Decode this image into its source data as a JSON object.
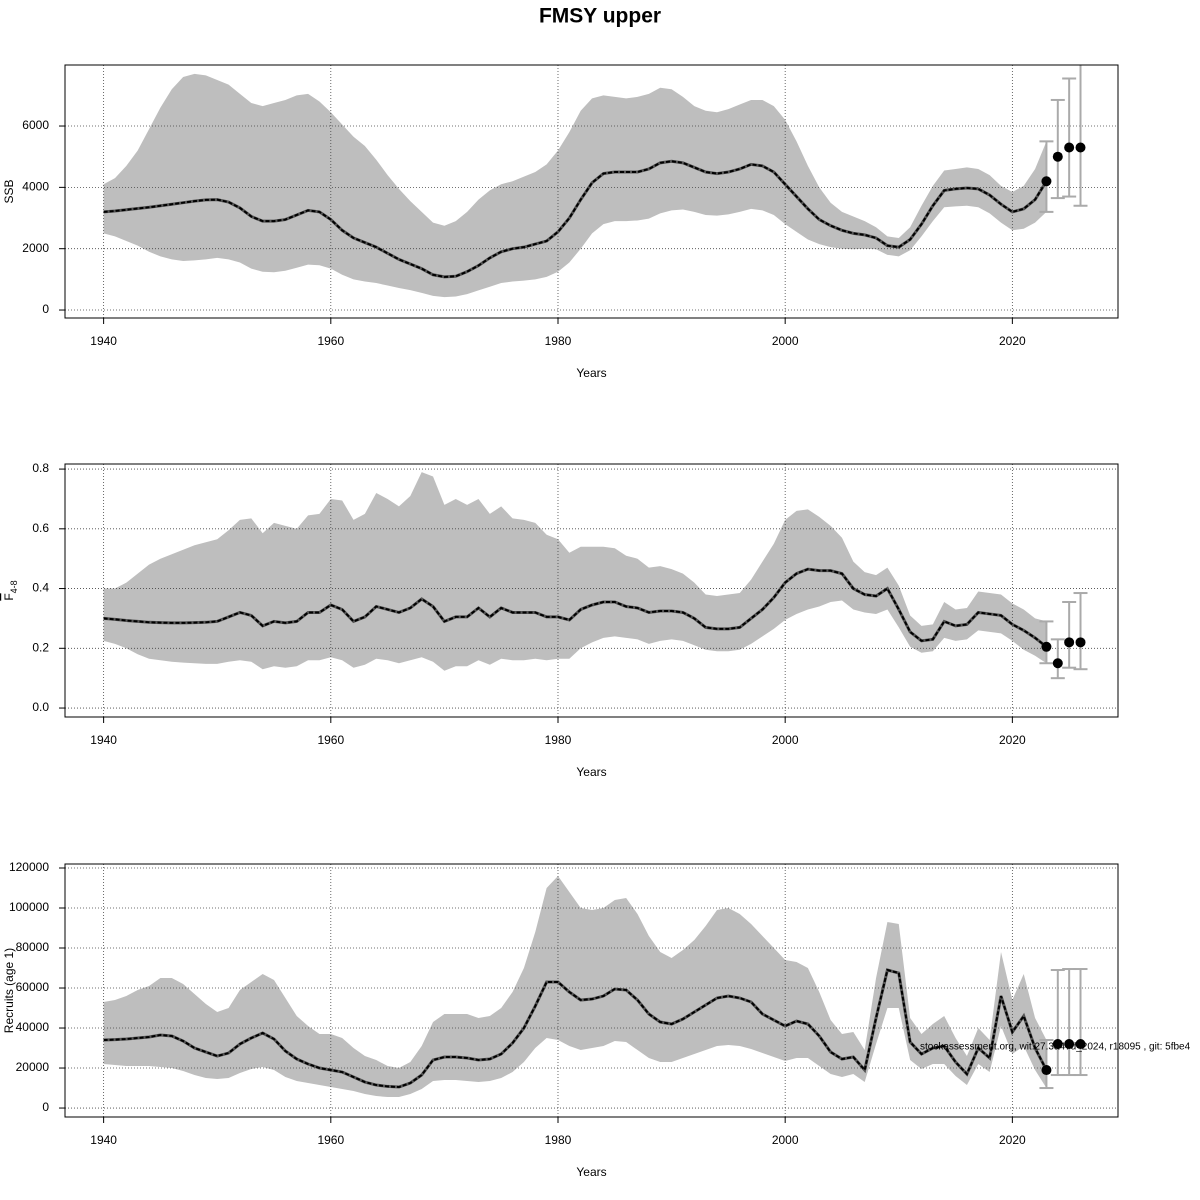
{
  "title": "FMSY upper",
  "footnote": "stockassessment.org, wit.27.3a47d_2024, r18095 , git: 5fbe4",
  "chart_data": [
    {
      "type": "line_band",
      "xlabel": "Years",
      "ylabel": "SSB",
      "xlim": [
        1936.6,
        2029.3
      ],
      "xticks": [
        1940,
        1960,
        1980,
        2000,
        2020
      ],
      "ylim": [
        -260,
        7990
      ],
      "yticks": [
        0,
        2000,
        4000,
        6000
      ],
      "grid": true,
      "band_color": "#bebebe",
      "line_color": "#000000",
      "error_bar_color": "#aaaaaa",
      "x": [
        1940,
        1941,
        1942,
        1943,
        1944,
        1945,
        1946,
        1947,
        1948,
        1949,
        1950,
        1951,
        1952,
        1953,
        1954,
        1955,
        1956,
        1957,
        1958,
        1959,
        1960,
        1961,
        1962,
        1963,
        1964,
        1965,
        1966,
        1967,
        1968,
        1969,
        1970,
        1971,
        1972,
        1973,
        1974,
        1975,
        1976,
        1977,
        1978,
        1979,
        1980,
        1981,
        1982,
        1983,
        1984,
        1985,
        1986,
        1987,
        1988,
        1989,
        1990,
        1991,
        1992,
        1993,
        1994,
        1995,
        1996,
        1997,
        1998,
        1999,
        2000,
        2001,
        2002,
        2003,
        2004,
        2005,
        2006,
        2007,
        2008,
        2009,
        2010,
        2011,
        2012,
        2013,
        2014,
        2015,
        2016,
        2017,
        2018,
        2019,
        2020,
        2021,
        2022,
        2023
      ],
      "values": [
        3200,
        3230,
        3270,
        3310,
        3350,
        3400,
        3450,
        3500,
        3550,
        3590,
        3600,
        3520,
        3330,
        3050,
        2900,
        2900,
        2950,
        3100,
        3250,
        3200,
        2950,
        2600,
        2350,
        2200,
        2050,
        1850,
        1650,
        1500,
        1350,
        1150,
        1080,
        1100,
        1250,
        1450,
        1700,
        1900,
        2000,
        2050,
        2150,
        2250,
        2550,
        3000,
        3600,
        4150,
        4450,
        4500,
        4500,
        4500,
        4600,
        4800,
        4850,
        4800,
        4650,
        4500,
        4450,
        4500,
        4600,
        4750,
        4700,
        4500,
        4100,
        3700,
        3300,
        2950,
        2750,
        2600,
        2500,
        2450,
        2350,
        2100,
        2050,
        2300,
        2800,
        3400,
        3900,
        3950,
        3980,
        3950,
        3750,
        3450,
        3200,
        3300,
        3600,
        4200
      ],
      "high": [
        4100,
        4300,
        4700,
        5200,
        5900,
        6600,
        7200,
        7600,
        7700,
        7650,
        7500,
        7350,
        7050,
        6750,
        6650,
        6750,
        6850,
        7000,
        7050,
        6800,
        6450,
        6050,
        5650,
        5350,
        4900,
        4400,
        3950,
        3550,
        3200,
        2850,
        2750,
        2900,
        3200,
        3600,
        3900,
        4100,
        4200,
        4350,
        4500,
        4750,
        5200,
        5800,
        6500,
        6900,
        7000,
        6950,
        6900,
        6950,
        7050,
        7250,
        7200,
        6950,
        6650,
        6500,
        6450,
        6550,
        6700,
        6850,
        6850,
        6650,
        6200,
        5500,
        4700,
        4000,
        3500,
        3200,
        3050,
        2900,
        2700,
        2400,
        2350,
        2700,
        3400,
        4050,
        4550,
        4600,
        4650,
        4600,
        4400,
        4050,
        3850,
        4050,
        4600,
        5500
      ],
      "low": [
        2500,
        2400,
        2250,
        2100,
        1900,
        1750,
        1650,
        1600,
        1620,
        1650,
        1700,
        1650,
        1550,
        1350,
        1250,
        1230,
        1280,
        1380,
        1480,
        1460,
        1350,
        1150,
        1000,
        930,
        880,
        800,
        720,
        650,
        560,
        460,
        420,
        440,
        520,
        640,
        760,
        880,
        930,
        960,
        1000,
        1080,
        1250,
        1550,
        2000,
        2500,
        2800,
        2900,
        2900,
        2920,
        2980,
        3150,
        3250,
        3280,
        3200,
        3100,
        3080,
        3120,
        3200,
        3300,
        3250,
        3100,
        2800,
        2550,
        2300,
        2150,
        2050,
        2000,
        1980,
        2000,
        1980,
        1800,
        1750,
        1950,
        2400,
        2900,
        3350,
        3380,
        3400,
        3350,
        3150,
        2850,
        2600,
        2650,
        2850,
        3200
      ],
      "projection": {
        "x": [
          2023,
          2024,
          2025,
          2026
        ],
        "values": [
          4200,
          5000,
          5300,
          5300
        ],
        "low": [
          3200,
          3650,
          3700,
          3400
        ],
        "high": [
          5500,
          6850,
          7550,
          8100
        ]
      }
    },
    {
      "type": "line_band",
      "xlabel": "Years",
      "ylabel": "F",
      "ylabel_subscript": "4-8",
      "xlim": [
        1936.6,
        2029.3
      ],
      "xticks": [
        1940,
        1960,
        1980,
        2000,
        2020
      ],
      "ylim": [
        -0.03,
        0.817
      ],
      "yticks": [
        {
          "value": 0,
          "label": "0.0"
        },
        0.2,
        0.4,
        0.6,
        0.8
      ],
      "grid": true,
      "band_color": "#bebebe",
      "line_color": "#000000",
      "error_bar_color": "#aaaaaa",
      "x": [
        1940,
        1941,
        1942,
        1943,
        1944,
        1945,
        1946,
        1947,
        1948,
        1949,
        1950,
        1951,
        1952,
        1953,
        1954,
        1955,
        1956,
        1957,
        1958,
        1959,
        1960,
        1961,
        1962,
        1963,
        1964,
        1965,
        1966,
        1967,
        1968,
        1969,
        1970,
        1971,
        1972,
        1973,
        1974,
        1975,
        1976,
        1977,
        1978,
        1979,
        1980,
        1981,
        1982,
        1983,
        1984,
        1985,
        1986,
        1987,
        1988,
        1989,
        1990,
        1991,
        1992,
        1993,
        1994,
        1995,
        1996,
        1997,
        1998,
        1999,
        2000,
        2001,
        2002,
        2003,
        2004,
        2005,
        2006,
        2007,
        2008,
        2009,
        2010,
        2011,
        2012,
        2013,
        2014,
        2015,
        2016,
        2017,
        2018,
        2019,
        2020,
        2021,
        2022,
        2023
      ],
      "values": [
        0.3,
        0.297,
        0.293,
        0.29,
        0.287,
        0.286,
        0.285,
        0.285,
        0.286,
        0.287,
        0.29,
        0.305,
        0.32,
        0.31,
        0.275,
        0.29,
        0.285,
        0.29,
        0.32,
        0.32,
        0.345,
        0.33,
        0.29,
        0.305,
        0.34,
        0.33,
        0.32,
        0.335,
        0.365,
        0.34,
        0.29,
        0.305,
        0.305,
        0.335,
        0.305,
        0.335,
        0.32,
        0.32,
        0.32,
        0.305,
        0.305,
        0.295,
        0.33,
        0.345,
        0.355,
        0.355,
        0.34,
        0.335,
        0.32,
        0.325,
        0.325,
        0.32,
        0.3,
        0.27,
        0.265,
        0.265,
        0.27,
        0.3,
        0.33,
        0.37,
        0.42,
        0.45,
        0.465,
        0.46,
        0.46,
        0.45,
        0.4,
        0.38,
        0.375,
        0.4,
        0.33,
        0.255,
        0.225,
        0.23,
        0.29,
        0.275,
        0.28,
        0.32,
        0.315,
        0.31,
        0.28,
        0.26,
        0.235,
        0.205
      ],
      "high": [
        0.4,
        0.4,
        0.42,
        0.45,
        0.48,
        0.5,
        0.515,
        0.53,
        0.545,
        0.555,
        0.565,
        0.595,
        0.63,
        0.635,
        0.585,
        0.62,
        0.61,
        0.6,
        0.645,
        0.65,
        0.7,
        0.695,
        0.63,
        0.65,
        0.72,
        0.7,
        0.675,
        0.71,
        0.79,
        0.775,
        0.68,
        0.7,
        0.68,
        0.7,
        0.65,
        0.675,
        0.635,
        0.63,
        0.62,
        0.58,
        0.565,
        0.52,
        0.54,
        0.54,
        0.54,
        0.535,
        0.51,
        0.5,
        0.47,
        0.475,
        0.465,
        0.45,
        0.42,
        0.38,
        0.375,
        0.38,
        0.385,
        0.43,
        0.49,
        0.55,
        0.63,
        0.66,
        0.665,
        0.64,
        0.61,
        0.57,
        0.49,
        0.455,
        0.445,
        0.47,
        0.41,
        0.31,
        0.275,
        0.28,
        0.355,
        0.33,
        0.335,
        0.39,
        0.385,
        0.38,
        0.35,
        0.33,
        0.3,
        0.29
      ],
      "low": [
        0.225,
        0.215,
        0.2,
        0.18,
        0.165,
        0.16,
        0.155,
        0.152,
        0.15,
        0.148,
        0.148,
        0.155,
        0.16,
        0.155,
        0.13,
        0.14,
        0.135,
        0.14,
        0.16,
        0.16,
        0.17,
        0.16,
        0.135,
        0.145,
        0.165,
        0.16,
        0.15,
        0.16,
        0.17,
        0.155,
        0.125,
        0.14,
        0.14,
        0.16,
        0.145,
        0.165,
        0.16,
        0.16,
        0.165,
        0.16,
        0.165,
        0.165,
        0.2,
        0.22,
        0.235,
        0.24,
        0.235,
        0.23,
        0.215,
        0.225,
        0.23,
        0.225,
        0.21,
        0.195,
        0.19,
        0.19,
        0.195,
        0.215,
        0.24,
        0.265,
        0.295,
        0.315,
        0.33,
        0.34,
        0.355,
        0.36,
        0.33,
        0.32,
        0.315,
        0.33,
        0.27,
        0.205,
        0.185,
        0.19,
        0.235,
        0.225,
        0.23,
        0.26,
        0.255,
        0.25,
        0.225,
        0.195,
        0.175,
        0.15
      ],
      "projection": {
        "x": [
          2023,
          2024,
          2025,
          2026
        ],
        "values": [
          0.205,
          0.15,
          0.22,
          0.22
        ],
        "low": [
          0.15,
          0.1,
          0.135,
          0.13
        ],
        "high": [
          0.29,
          0.23,
          0.355,
          0.385
        ]
      }
    },
    {
      "type": "line_band",
      "xlabel": "Years",
      "ylabel": "Recruits (age 1)",
      "xlim": [
        1936.6,
        2029.3
      ],
      "xticks": [
        1940,
        1960,
        1980,
        2000,
        2020
      ],
      "ylim": [
        -4480,
        122000
      ],
      "yticks": [
        0,
        20000,
        40000,
        60000,
        80000,
        100000,
        120000
      ],
      "grid": true,
      "band_color": "#bebebe",
      "line_color": "#000000",
      "error_bar_color": "#aaaaaa",
      "x": [
        1940,
        1941,
        1942,
        1943,
        1944,
        1945,
        1946,
        1947,
        1948,
        1949,
        1950,
        1951,
        1952,
        1953,
        1954,
        1955,
        1956,
        1957,
        1958,
        1959,
        1960,
        1961,
        1962,
        1963,
        1964,
        1965,
        1966,
        1967,
        1968,
        1969,
        1970,
        1971,
        1972,
        1973,
        1974,
        1975,
        1976,
        1977,
        1978,
        1979,
        1980,
        1981,
        1982,
        1983,
        1984,
        1985,
        1986,
        1987,
        1988,
        1989,
        1990,
        1991,
        1992,
        1993,
        1994,
        1995,
        1996,
        1997,
        1998,
        1999,
        2000,
        2001,
        2002,
        2003,
        2004,
        2005,
        2006,
        2007,
        2008,
        2009,
        2010,
        2011,
        2012,
        2013,
        2014,
        2015,
        2016,
        2017,
        2018,
        2019,
        2020,
        2021,
        2022,
        2023
      ],
      "values": [
        34000,
        34200,
        34500,
        35000,
        35500,
        36500,
        36000,
        33500,
        30000,
        28000,
        26000,
        27500,
        32000,
        35000,
        37500,
        34500,
        28500,
        24500,
        22000,
        20000,
        19000,
        18000,
        15500,
        13000,
        11500,
        10800,
        10500,
        12500,
        16500,
        24000,
        25500,
        25500,
        25000,
        24000,
        24500,
        27000,
        32500,
        40000,
        51000,
        63000,
        63000,
        58000,
        54000,
        54500,
        56000,
        59500,
        59000,
        54000,
        47000,
        43000,
        42000,
        44500,
        48000,
        51500,
        55000,
        56000,
        55000,
        53000,
        47000,
        44000,
        41000,
        43500,
        42000,
        36000,
        28000,
        24500,
        25500,
        19000,
        45000,
        69000,
        67500,
        33000,
        27000,
        30000,
        31000,
        23000,
        17000,
        30000,
        25000,
        56000,
        38000,
        46000,
        30000,
        19000
      ],
      "high": [
        53000,
        54000,
        56000,
        59000,
        61000,
        65000,
        65000,
        62000,
        57000,
        52000,
        48000,
        50000,
        59000,
        63000,
        67000,
        64000,
        55000,
        46000,
        41000,
        37000,
        37000,
        35000,
        30000,
        26000,
        24000,
        21000,
        20000,
        23000,
        31000,
        43000,
        47000,
        47000,
        47000,
        45000,
        46000,
        50000,
        58000,
        70000,
        88000,
        110000,
        116000,
        108000,
        100000,
        99000,
        100000,
        104000,
        105000,
        97000,
        86000,
        78000,
        75000,
        79000,
        84000,
        91000,
        99000,
        100000,
        97000,
        92000,
        86000,
        80000,
        74000,
        73000,
        70000,
        58000,
        44000,
        37000,
        38000,
        29000,
        65000,
        93000,
        92000,
        45000,
        37000,
        42000,
        46000,
        35000,
        26000,
        40000,
        34000,
        78000,
        54000,
        67000,
        45000,
        34000
      ],
      "low": [
        22000,
        21500,
        21000,
        21000,
        21000,
        20500,
        20000,
        18500,
        16500,
        15000,
        14500,
        15000,
        17500,
        19500,
        20500,
        19000,
        15500,
        13500,
        12500,
        11500,
        10500,
        9500,
        8500,
        7000,
        6000,
        5500,
        5500,
        7000,
        9500,
        13500,
        14000,
        14000,
        13500,
        13000,
        13500,
        15000,
        18000,
        23000,
        30000,
        35000,
        34000,
        31000,
        29000,
        30000,
        31000,
        33500,
        33000,
        29000,
        25000,
        23000,
        23000,
        25000,
        27000,
        29000,
        31000,
        31500,
        31000,
        29500,
        27500,
        25500,
        23500,
        25000,
        25000,
        21000,
        17000,
        15500,
        17000,
        13000,
        32000,
        50000,
        50000,
        24000,
        19500,
        22000,
        22000,
        16000,
        11500,
        22000,
        18000,
        41000,
        27000,
        31000,
        19000,
        10000
      ],
      "projection": {
        "x": [
          2023,
          2024,
          2025,
          2026
        ],
        "values": [
          19000,
          32000,
          32000,
          32000
        ],
        "low": [
          10000,
          16500,
          16500,
          16500
        ],
        "high": [
          34000,
          69000,
          69500,
          69500
        ]
      }
    }
  ]
}
